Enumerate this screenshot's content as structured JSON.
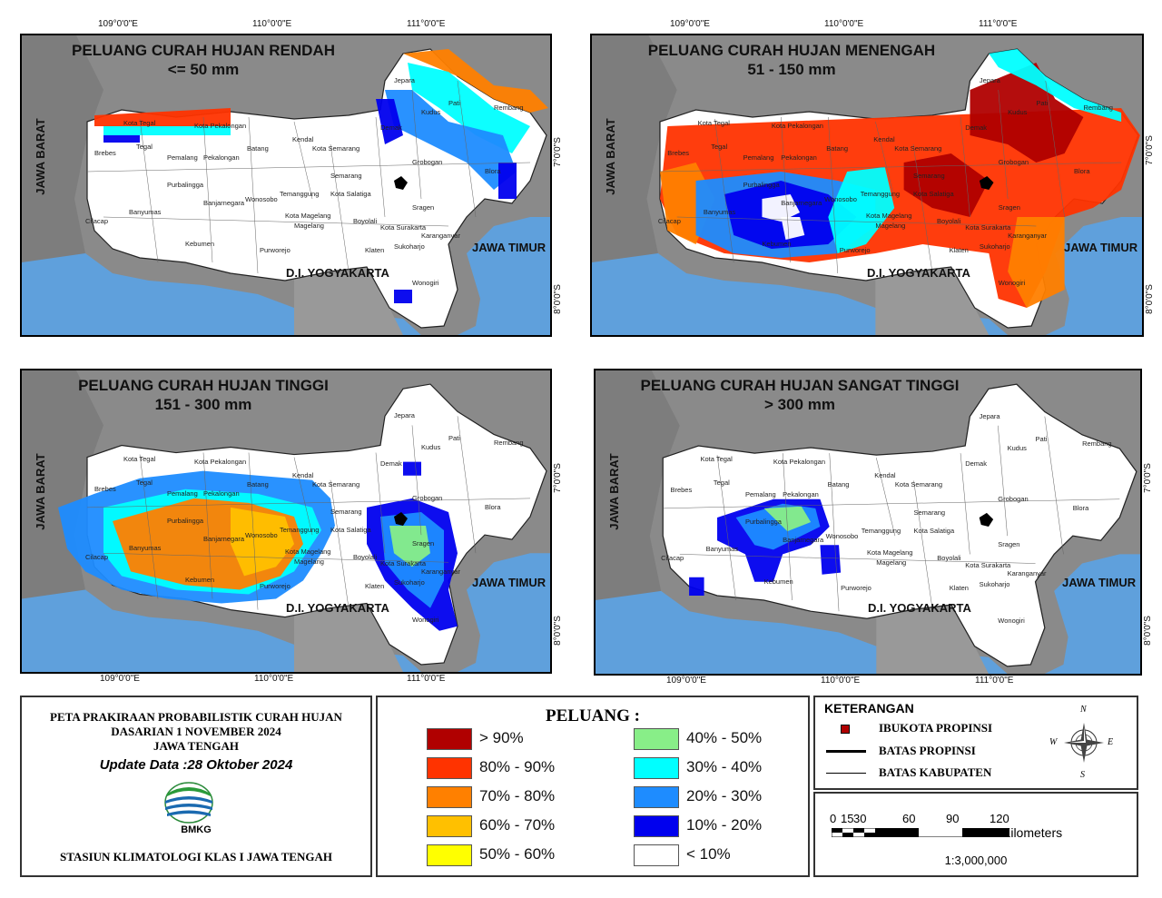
{
  "lon_labels": [
    "109°0'0\"E",
    "110°0'0\"E",
    "111°0'0\"E"
  ],
  "lat_labels": [
    "7°0'0\"S",
    "8°0'0\"S"
  ],
  "regions": {
    "west": "JAWA BARAT",
    "east": "JAWA TIMUR",
    "south": "D.I. YOGYAKARTA"
  },
  "cities": [
    "Jepara",
    "Kudus",
    "Pati",
    "Rembang",
    "Demak",
    "Kota Tegal",
    "Kota Pekalongan",
    "Kendal",
    "Kota Semarang",
    "Brebes",
    "Tegal",
    "Pemalang",
    "Pekalongan",
    "Batang",
    "Grobogan",
    "Blora",
    "Semarang",
    "Purbalingga",
    "Banjarnegara",
    "Wonosobo",
    "Temanggung",
    "Kota Salatiga",
    "Sragen",
    "Cilacap",
    "Banyumas",
    "Kota Magelang",
    "Magelang",
    "Boyolali",
    "Kota Surakarta",
    "Karanganyar",
    "Kebumen",
    "Purworejo",
    "Klaten",
    "Sukoharjo",
    "Wonogiri"
  ],
  "panels": [
    {
      "title": "PELUANG CURAH HUJAN RENDAH",
      "subtitle": "<= 50 mm"
    },
    {
      "title": "PELUANG CURAH HUJAN MENENGAH",
      "subtitle": "51 - 150 mm"
    },
    {
      "title": "PELUANG CURAH HUJAN TINGGI",
      "subtitle": "151 - 300 mm"
    },
    {
      "title": "PELUANG CURAH HUJAN SANGAT TINGGI",
      "subtitle": "> 300 mm"
    }
  ],
  "info": {
    "line1": "PETA PRAKIRAAN PROBABILISTIK CURAH HUJAN",
    "line2": "DASARIAN 1 NOVEMBER 2024",
    "line3": "JAWA TENGAH",
    "update": "Update Data :28 Oktober 2024",
    "logo_text": "BMKG",
    "station": "STASIUN KLIMATOLOGI KLAS I JAWA TENGAH"
  },
  "legend": {
    "title": "PELUANG :",
    "items": [
      {
        "label": "> 90%",
        "color": "#b00000"
      },
      {
        "label": "80% - 90%",
        "color": "#ff3300"
      },
      {
        "label": "70% - 80%",
        "color": "#ff8000"
      },
      {
        "label": "60% - 70%",
        "color": "#ffc000"
      },
      {
        "label": "50% - 60%",
        "color": "#ffff00"
      },
      {
        "label": "40% - 50%",
        "color": "#88ee88"
      },
      {
        "label": "30% - 40%",
        "color": "#00ffff"
      },
      {
        "label": "20% - 30%",
        "color": "#1e8cff"
      },
      {
        "label": "10% - 20%",
        "color": "#0000ee"
      },
      {
        "label": "< 10%",
        "color": "#ffffff"
      }
    ]
  },
  "keterangan": {
    "title": "KETERANGAN",
    "capital": "IBUKOTA PROPINSI",
    "province": "BATAS PROPINSI",
    "district": "BATAS KABUPATEN",
    "compass": {
      "n": "N",
      "e": "E",
      "s": "S",
      "w": "W"
    },
    "scale_ticks": [
      "0",
      "15",
      "30",
      "60",
      "90",
      "120"
    ],
    "scale_unit": "Kilometers",
    "ratio": "1:3,000,000"
  }
}
